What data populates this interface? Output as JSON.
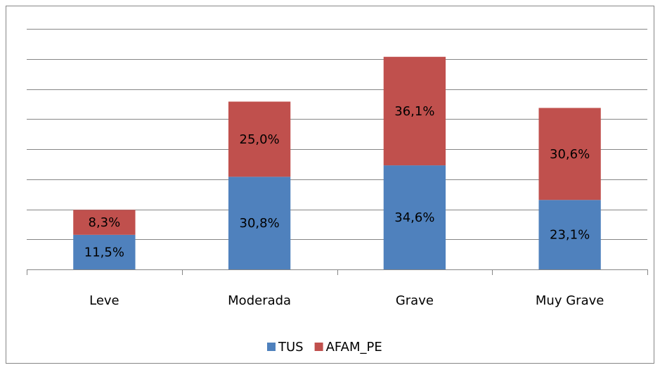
{
  "chart_data": {
    "type": "stacked_bar",
    "categories": [
      "Leve",
      "Moderada",
      "Grave",
      "Muy Grave"
    ],
    "series": [
      {
        "name": "TUS",
        "color": "#4f81bd",
        "values": [
          11.5,
          30.8,
          34.6,
          23.1
        ],
        "value_labels": [
          "11,5%",
          "30,8%",
          "34,6%",
          "23,1%"
        ]
      },
      {
        "name": "AFAM_PE",
        "color": "#c0504d",
        "values": [
          8.3,
          25.0,
          36.1,
          30.6
        ],
        "value_labels": [
          "8,3%",
          "25,0%",
          "36,1%",
          "30,6%"
        ]
      }
    ],
    "ylim": [
      0,
      80
    ],
    "yticks": [
      0,
      10,
      20,
      30,
      40,
      50,
      60,
      70,
      80
    ],
    "grid": true,
    "legend": "bottom"
  }
}
